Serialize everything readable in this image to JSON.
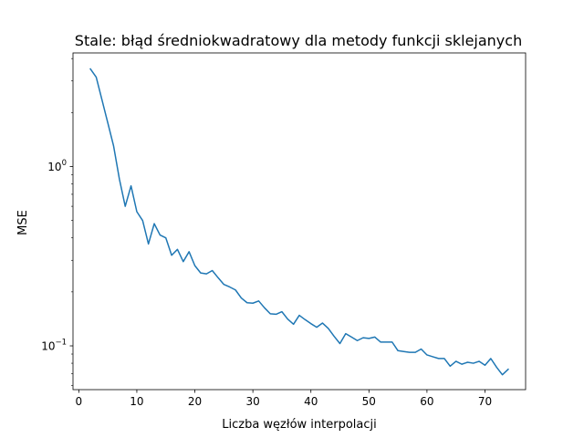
{
  "chart_data": {
    "type": "line",
    "title": "Stale: błąd średniokwadratowy dla metody funkcji sklejanych",
    "xlabel": "Liczba węzłów interpolacji",
    "ylabel": "MSE",
    "yscale": "log",
    "xlim": [
      -1,
      77
    ],
    "ylim": [
      0.057,
      4.3
    ],
    "xticks": [
      0,
      10,
      20,
      30,
      40,
      50,
      60,
      70
    ],
    "xtick_labels": [
      "0",
      "10",
      "20",
      "30",
      "40",
      "50",
      "60",
      "70"
    ],
    "yticks_major": [
      0.1,
      1
    ],
    "ytick_labels": [
      {
        "base": "10",
        "exp": "−1"
      },
      {
        "base": "10",
        "exp": "0"
      }
    ],
    "grid": false,
    "line_color": "#1f77b4",
    "series": [
      {
        "x": [
          2,
          3,
          4,
          5,
          6,
          7,
          8,
          9,
          10,
          11,
          12,
          13,
          14,
          15,
          16,
          17,
          18,
          19,
          20,
          21,
          22,
          23,
          24,
          25,
          26,
          27,
          28,
          29,
          30,
          31,
          32,
          33,
          34,
          35,
          36,
          37,
          38,
          39,
          40,
          41,
          42,
          43,
          44,
          45,
          46,
          47,
          48,
          49,
          50,
          51,
          52,
          53,
          54,
          55,
          56,
          57,
          58,
          59,
          60,
          61,
          62,
          63,
          64,
          65,
          66,
          67,
          68,
          69,
          70,
          71,
          72,
          73,
          74
        ],
        "values": [
          3.5,
          3.15,
          2.35,
          1.75,
          1.3,
          0.85,
          0.6,
          0.78,
          0.56,
          0.5,
          0.37,
          0.48,
          0.415,
          0.4,
          0.32,
          0.345,
          0.295,
          0.335,
          0.28,
          0.255,
          0.252,
          0.263,
          0.24,
          0.22,
          0.213,
          0.205,
          0.185,
          0.174,
          0.173,
          0.178,
          0.163,
          0.151,
          0.15,
          0.155,
          0.141,
          0.132,
          0.148,
          0.14,
          0.133,
          0.127,
          0.134,
          0.125,
          0.113,
          0.103,
          0.117,
          0.112,
          0.107,
          0.111,
          0.11,
          0.112,
          0.105,
          0.105,
          0.105,
          0.094,
          0.093,
          0.092,
          0.092,
          0.096,
          0.089,
          0.087,
          0.085,
          0.085,
          0.077,
          0.082,
          0.079,
          0.081,
          0.08,
          0.082,
          0.078,
          0.085,
          0.076,
          0.069,
          0.074
        ]
      }
    ]
  }
}
